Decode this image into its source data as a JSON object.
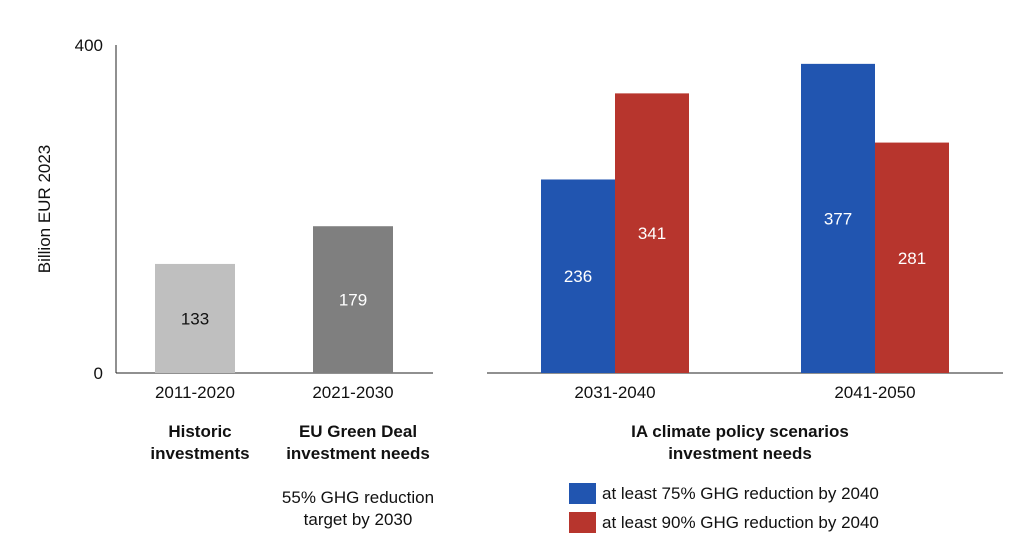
{
  "chart_data": {
    "type": "bar",
    "ylabel": "Billion EUR 2023",
    "ylim": [
      0,
      400
    ],
    "yticks": [
      "0",
      "400"
    ],
    "panels": [
      {
        "categories": [
          "2011-2020",
          "2021-2030"
        ],
        "values": [
          133,
          179
        ],
        "colors": [
          "#bfbfbf",
          "#7f7f7f"
        ],
        "label_colors": [
          "#111111",
          "#ffffff"
        ]
      },
      {
        "categories": [
          "2031-2040",
          "2041-2050"
        ],
        "series": [
          {
            "name": "at least 75% GHG reduction by 2040",
            "values": [
              236,
              377
            ],
            "color": "#2155b0"
          },
          {
            "name": "at least 90% GHG reduction by 2040",
            "values": [
              341,
              281
            ],
            "color": "#b7352d"
          }
        ]
      }
    ]
  },
  "groups": {
    "historic": {
      "line1": "Historic",
      "line2": "investments"
    },
    "green_deal": {
      "line1": "EU Green Deal",
      "line2": "investment needs"
    },
    "ia": {
      "line1": "IA climate policy scenarios",
      "line2": "investment needs"
    }
  },
  "note": {
    "line1": "55% GHG reduction",
    "line2": "target by 2030"
  },
  "legend": [
    {
      "label": "at least 75% GHG reduction by 2040",
      "color": "#2155b0"
    },
    {
      "label": "at least 90% GHG reduction by 2040",
      "color": "#b7352d"
    }
  ]
}
